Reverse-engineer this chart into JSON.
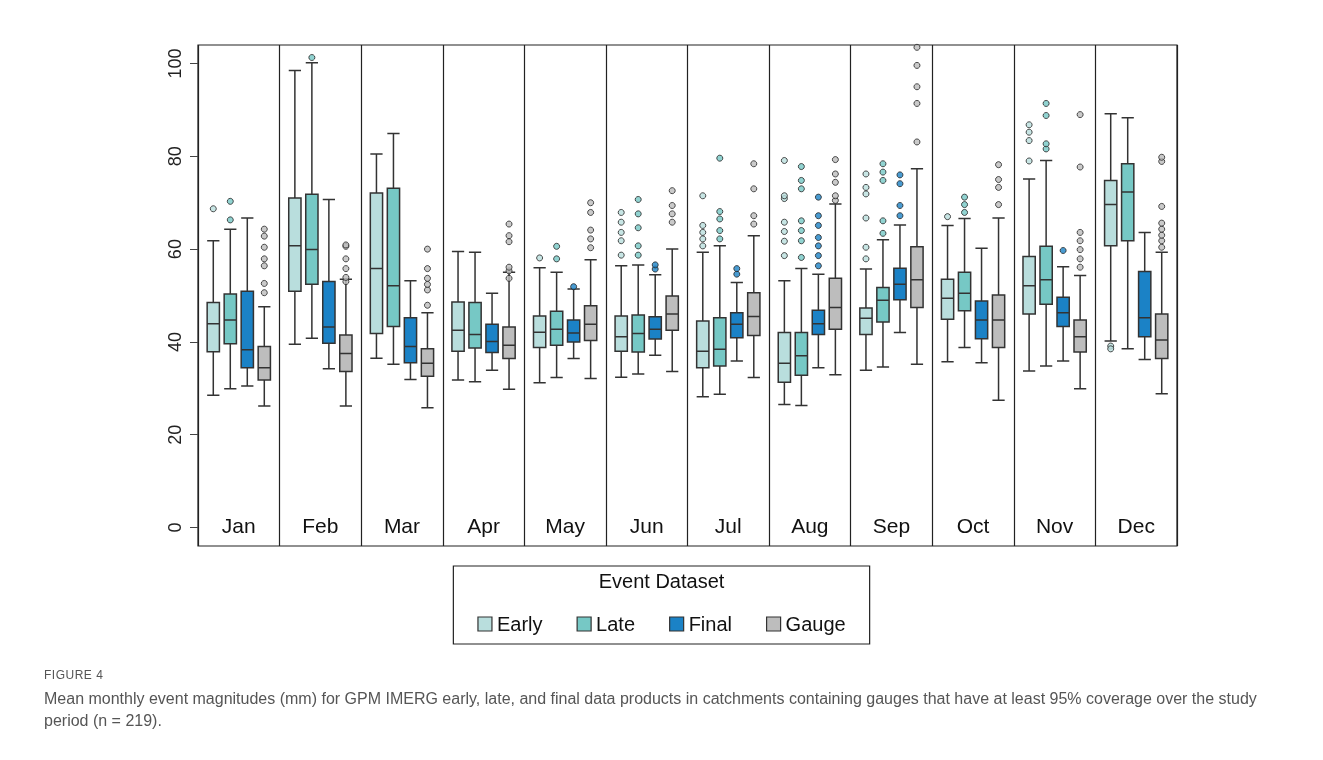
{
  "chart_data": {
    "type": "box",
    "categories": [
      "Jan",
      "Feb",
      "Mar",
      "Apr",
      "May",
      "Jun",
      "Jul",
      "Aug",
      "Sep",
      "Oct",
      "Nov",
      "Dec"
    ],
    "ylim": [
      -4,
      104
    ],
    "yticks": [
      0,
      20,
      40,
      60,
      80,
      100
    ],
    "grid": "x",
    "legend": "bottom",
    "legend_title": "Event Dataset",
    "annotations": [
      "FIGURE 4",
      "Mean monthly event magnitudes (mm) for GPM IMERG early, late, and final data products in catchments containing gauges that have at least 95% coverage over the study period (n = 219)."
    ],
    "series": [
      {
        "name": "Early",
        "color": "#b9dedd",
        "boxes": [
          {
            "low": 28.5,
            "q1": 37.9,
            "median": 43.9,
            "q3": 48.5,
            "high": 61.8,
            "outliers": [
              68.7
            ]
          },
          {
            "low": 39.5,
            "q1": 50.9,
            "median": 60.7,
            "q3": 71.0,
            "high": 98.5
          },
          {
            "low": 36.5,
            "q1": 41.8,
            "median": 55.8,
            "q3": 72.1,
            "high": 80.5
          },
          {
            "low": 31.8,
            "q1": 38.0,
            "median": 42.5,
            "q3": 48.6,
            "high": 59.5
          },
          {
            "low": 31.2,
            "q1": 38.8,
            "median": 42.1,
            "q3": 45.6,
            "high": 56.0,
            "outliers": [
              58.1
            ]
          },
          {
            "low": 32.4,
            "q1": 38.0,
            "median": 41.1,
            "q3": 45.6,
            "high": 56.4,
            "outliers": [
              58.7,
              61.8,
              63.6,
              65.8,
              67.9
            ]
          },
          {
            "low": 28.2,
            "q1": 34.4,
            "median": 38.0,
            "q3": 44.5,
            "high": 59.3,
            "outliers": [
              60.7,
              62.2,
              63.6,
              65.1,
              71.5
            ]
          },
          {
            "low": 26.5,
            "q1": 31.3,
            "median": 35.4,
            "q3": 42.0,
            "high": 53.2,
            "outliers": [
              58.6,
              61.7,
              63.8,
              65.8,
              70.9,
              71.5,
              79.1
            ]
          },
          {
            "low": 33.9,
            "q1": 41.6,
            "median": 45.1,
            "q3": 47.3,
            "high": 55.7,
            "outliers": [
              57.9,
              60.4,
              66.7,
              71.9,
              73.3,
              76.2
            ]
          },
          {
            "low": 35.7,
            "q1": 44.9,
            "median": 49.4,
            "q3": 53.5,
            "high": 65.1,
            "outliers": [
              67.0
            ]
          },
          {
            "low": 33.7,
            "q1": 46.0,
            "median": 52.1,
            "q3": 58.4,
            "high": 75.1,
            "outliers": [
              79.0,
              83.4,
              85.2,
              86.8
            ]
          },
          {
            "low": 40.2,
            "q1": 60.7,
            "median": 69.6,
            "q3": 74.8,
            "high": 89.2,
            "outliers": [
              39.1,
              38.5
            ]
          }
        ]
      },
      {
        "name": "Late",
        "color": "#76c8c5",
        "boxes": [
          {
            "low": 29.9,
            "q1": 39.6,
            "median": 44.7,
            "q3": 50.3,
            "high": 64.3,
            "outliers": [
              66.3,
              70.3
            ]
          },
          {
            "low": 40.8,
            "q1": 52.4,
            "median": 59.9,
            "q3": 71.8,
            "high": 100.2,
            "outliers": [
              101.3
            ]
          },
          {
            "low": 35.2,
            "q1": 43.3,
            "median": 52.1,
            "q3": 73.1,
            "high": 84.9
          },
          {
            "low": 31.4,
            "q1": 38.7,
            "median": 41.6,
            "q3": 48.5,
            "high": 59.3
          },
          {
            "low": 32.3,
            "q1": 39.3,
            "median": 42.7,
            "q3": 46.6,
            "high": 55.0,
            "outliers": [
              57.9,
              60.6
            ]
          },
          {
            "low": 33.1,
            "q1": 37.8,
            "median": 41.8,
            "q3": 45.8,
            "high": 56.6,
            "outliers": [
              58.7,
              60.7,
              64.6,
              67.6,
              70.7
            ]
          },
          {
            "low": 28.7,
            "q1": 34.8,
            "median": 38.4,
            "q3": 45.2,
            "high": 60.7,
            "outliers": [
              62.2,
              64.0,
              66.5,
              68.1,
              79.6
            ]
          },
          {
            "low": 26.3,
            "q1": 32.8,
            "median": 37.0,
            "q3": 42.0,
            "high": 55.8,
            "outliers": [
              58.2,
              61.8,
              64.0,
              66.1,
              73.0,
              74.8,
              77.8
            ]
          },
          {
            "low": 34.6,
            "q1": 44.3,
            "median": 49.0,
            "q3": 51.7,
            "high": 62.0,
            "outliers": [
              63.4,
              66.1,
              74.8,
              76.6,
              78.4
            ]
          },
          {
            "low": 38.8,
            "q1": 46.7,
            "median": 50.5,
            "q3": 55.0,
            "high": 66.6,
            "outliers": [
              67.9,
              69.6,
              71.2
            ]
          },
          {
            "low": 34.8,
            "q1": 48.1,
            "median": 53.4,
            "q3": 60.6,
            "high": 79.1,
            "outliers": [
              81.6,
              82.7,
              88.8,
              91.4
            ]
          },
          {
            "low": 38.5,
            "q1": 61.8,
            "median": 72.3,
            "q3": 78.4,
            "high": 88.3
          }
        ]
      },
      {
        "name": "Final",
        "color": "#1b82c6",
        "boxes": [
          {
            "low": 30.5,
            "q1": 34.4,
            "median": 38.3,
            "q3": 50.9,
            "high": 66.7
          },
          {
            "low": 34.2,
            "q1": 39.7,
            "median": 43.2,
            "q3": 53.0,
            "high": 70.7
          },
          {
            "low": 31.9,
            "q1": 35.5,
            "median": 39.0,
            "q3": 45.2,
            "high": 53.2
          },
          {
            "low": 33.9,
            "q1": 37.7,
            "median": 40.1,
            "q3": 43.8,
            "high": 50.5
          },
          {
            "low": 36.4,
            "q1": 40.0,
            "median": 41.9,
            "q3": 44.7,
            "high": 51.4,
            "outliers": [
              51.9
            ]
          },
          {
            "low": 37.1,
            "q1": 40.6,
            "median": 42.7,
            "q3": 45.4,
            "high": 54.5,
            "outliers": [
              55.7,
              56.6
            ]
          },
          {
            "low": 35.9,
            "q1": 40.9,
            "median": 43.8,
            "q3": 46.3,
            "high": 52.8,
            "outliers": [
              54.6,
              55.8
            ]
          },
          {
            "low": 34.4,
            "q1": 41.6,
            "median": 43.9,
            "q3": 46.8,
            "high": 54.6,
            "outliers": [
              56.4,
              58.6,
              60.7,
              62.5,
              65.1,
              67.2,
              71.2
            ]
          },
          {
            "low": 42.0,
            "q1": 49.1,
            "median": 52.4,
            "q3": 55.9,
            "high": 65.2,
            "outliers": [
              67.2,
              69.4,
              74.1,
              76.0
            ]
          },
          {
            "low": 35.5,
            "q1": 40.7,
            "median": 44.7,
            "q3": 48.8,
            "high": 60.2
          },
          {
            "low": 35.9,
            "q1": 43.3,
            "median": 46.3,
            "q3": 49.6,
            "high": 56.2,
            "outliers": [
              59.7
            ]
          },
          {
            "low": 36.2,
            "q1": 41.1,
            "median": 45.2,
            "q3": 55.2,
            "high": 63.6
          }
        ]
      },
      {
        "name": "Gauge",
        "color": "#bdbdbd",
        "boxes": [
          {
            "low": 26.2,
            "q1": 31.8,
            "median": 34.4,
            "q3": 39.0,
            "high": 47.6,
            "outliers": [
              50.6,
              52.6,
              56.4,
              57.9,
              60.4,
              62.8,
              64.3
            ]
          },
          {
            "low": 26.2,
            "q1": 33.6,
            "median": 37.5,
            "q3": 41.5,
            "high": 53.5,
            "outliers": [
              53.0,
              53.9,
              55.8,
              57.9,
              60.6,
              60.9
            ]
          },
          {
            "low": 25.8,
            "q1": 32.6,
            "median": 35.4,
            "q3": 38.5,
            "high": 46.3,
            "outliers": [
              47.9,
              51.2,
              52.4,
              53.7,
              55.8,
              60.0
            ]
          },
          {
            "low": 29.8,
            "q1": 36.4,
            "median": 39.3,
            "q3": 43.2,
            "high": 55.0,
            "outliers": [
              53.7,
              55.3,
              56.1,
              61.6,
              62.9,
              65.4
            ]
          },
          {
            "low": 32.1,
            "q1": 40.3,
            "median": 43.8,
            "q3": 47.8,
            "high": 57.7,
            "outliers": [
              60.3,
              62.2,
              64.1,
              67.9,
              70.0
            ]
          },
          {
            "low": 33.6,
            "q1": 42.5,
            "median": 46.0,
            "q3": 49.9,
            "high": 60.0,
            "outliers": [
              65.8,
              67.6,
              69.4,
              72.6
            ]
          },
          {
            "low": 32.3,
            "q1": 41.4,
            "median": 45.5,
            "q3": 50.6,
            "high": 62.9,
            "outliers": [
              65.4,
              67.2,
              73.0,
              78.4
            ]
          },
          {
            "low": 32.9,
            "q1": 42.7,
            "median": 47.4,
            "q3": 53.7,
            "high": 69.7,
            "outliers": [
              70.5,
              71.5,
              74.4,
              76.2,
              79.3
            ]
          },
          {
            "low": 35.2,
            "q1": 47.4,
            "median": 53.4,
            "q3": 60.5,
            "high": 77.3,
            "outliers": [
              83.1,
              91.4,
              95.0,
              99.6,
              103.5
            ]
          },
          {
            "low": 27.4,
            "q1": 38.8,
            "median": 44.7,
            "q3": 50.1,
            "high": 66.7,
            "outliers": [
              69.6,
              73.3,
              75.0,
              78.2
            ]
          },
          {
            "low": 29.9,
            "q1": 37.8,
            "median": 41.1,
            "q3": 44.7,
            "high": 54.3,
            "outliers": [
              56.1,
              57.9,
              59.9,
              61.8,
              63.6,
              77.7,
              89.0
            ]
          },
          {
            "low": 28.8,
            "q1": 36.4,
            "median": 40.4,
            "q3": 46.0,
            "high": 59.3,
            "outliers": [
              60.4,
              61.8,
              63.0,
              64.3,
              65.6,
              69.2,
              78.9,
              79.8
            ]
          }
        ]
      }
    ]
  }
}
